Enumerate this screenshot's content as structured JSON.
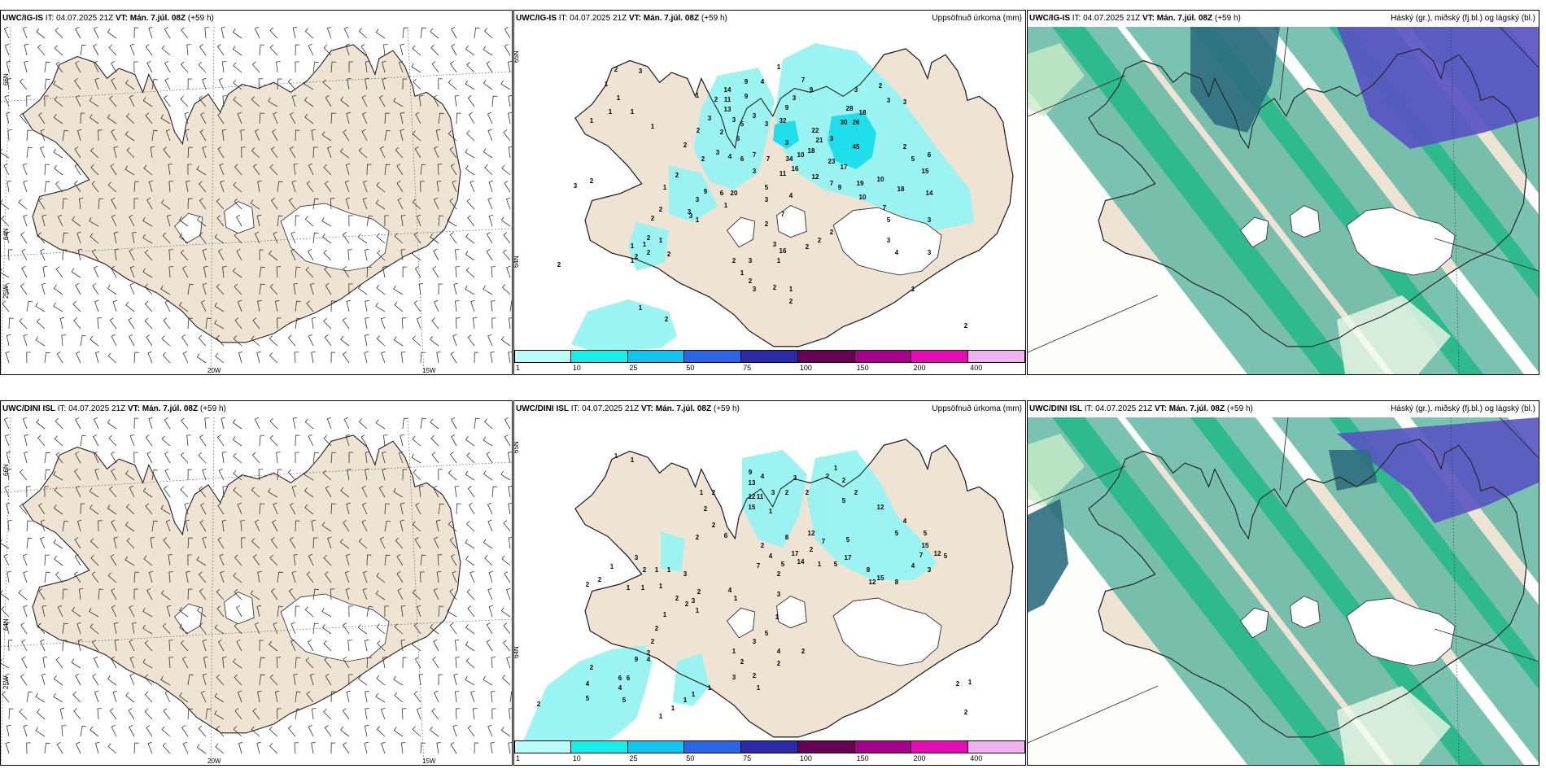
{
  "rows": [
    {
      "model": "UWC/IG-IS",
      "it_label": "IT:",
      "it_value": "04.07.2025 21Z",
      "vt_label": "VT:",
      "vt_value": "Mán. 7.júl. 08Z",
      "lead": "(+59 h)"
    },
    {
      "model": "UWC/DINI ISL",
      "it_label": "IT:",
      "it_value": "04.07.2025 21Z",
      "vt_label": "VT:",
      "vt_value": "Mán. 7.júl. 08Z",
      "lead": "(+59 h)"
    }
  ],
  "precip_title": "Uppsöfnuð úrkoma (mm)",
  "cloud_title": "Háský (gr.), miðský (fj.bl.) og lágský (bl.)",
  "axis_labels": {
    "lat_66": "66N",
    "lat_64": "64N",
    "lon_25": "25W",
    "lon_20": "20W",
    "lon_15": "15W",
    "lat_65r": "65N",
    "lat_64r": "64N"
  },
  "colorbar": {
    "labels": [
      "1",
      "10",
      "25",
      "50",
      "75",
      "100",
      "150",
      "200",
      "400"
    ],
    "colors": [
      "#b8fcfb",
      "#16eeea",
      "#0fc4ef",
      "#2c64e6",
      "#2a2aa8",
      "#680056",
      "#a8008e",
      "#e60ab4",
      "#f0b2ee"
    ]
  },
  "colors": {
    "land": "#efe3d4",
    "precip": "#96f4f2",
    "precip_heavy": "#14e0ec",
    "cloud_high": "#62b8a2",
    "cloud_mid": "#22b888",
    "cloud_low": "#5854c2",
    "cloud_low_dark": "#2f6e80"
  },
  "precip_numbers_top": [
    {
      "t": "1",
      "x": 113,
      "y": 73
    },
    {
      "t": "2",
      "x": 125,
      "y": 55
    },
    {
      "t": "3",
      "x": 155,
      "y": 57
    },
    {
      "t": "1",
      "x": 128,
      "y": 90
    },
    {
      "t": "1",
      "x": 118,
      "y": 107
    },
    {
      "t": "1",
      "x": 95,
      "y": 118
    },
    {
      "t": "1",
      "x": 145,
      "y": 107
    },
    {
      "t": "1",
      "x": 170,
      "y": 125
    },
    {
      "t": "1",
      "x": 225,
      "y": 87
    },
    {
      "t": "2",
      "x": 248,
      "y": 92
    },
    {
      "t": "14",
      "x": 262,
      "y": 80
    },
    {
      "t": "11",
      "x": 262,
      "y": 92
    },
    {
      "t": "13",
      "x": 262,
      "y": 104
    },
    {
      "t": "9",
      "x": 285,
      "y": 70
    },
    {
      "t": "9",
      "x": 285,
      "y": 88
    },
    {
      "t": "4",
      "x": 305,
      "y": 70
    },
    {
      "t": "1",
      "x": 325,
      "y": 52
    },
    {
      "t": "3",
      "x": 240,
      "y": 115
    },
    {
      "t": "3",
      "x": 270,
      "y": 117
    },
    {
      "t": "2",
      "x": 226,
      "y": 130
    },
    {
      "t": "2",
      "x": 255,
      "y": 132
    },
    {
      "t": "5",
      "x": 280,
      "y": 122
    },
    {
      "t": "3",
      "x": 295,
      "y": 112
    },
    {
      "t": "3",
      "x": 310,
      "y": 122
    },
    {
      "t": "32",
      "x": 330,
      "y": 118
    },
    {
      "t": "9",
      "x": 335,
      "y": 102
    },
    {
      "t": "7",
      "x": 355,
      "y": 68
    },
    {
      "t": "9",
      "x": 365,
      "y": 80
    },
    {
      "t": "3",
      "x": 344,
      "y": 90
    },
    {
      "t": "22",
      "x": 370,
      "y": 130
    },
    {
      "t": "21",
      "x": 375,
      "y": 142
    },
    {
      "t": "18",
      "x": 365,
      "y": 155
    },
    {
      "t": "3",
      "x": 335,
      "y": 145
    },
    {
      "t": "28",
      "x": 412,
      "y": 103
    },
    {
      "t": "18",
      "x": 428,
      "y": 108
    },
    {
      "t": "30",
      "x": 405,
      "y": 120
    },
    {
      "t": "26",
      "x": 420,
      "y": 120
    },
    {
      "t": "45",
      "x": 420,
      "y": 150
    },
    {
      "t": "3",
      "x": 390,
      "y": 140
    },
    {
      "t": "3",
      "x": 420,
      "y": 80
    },
    {
      "t": "2",
      "x": 450,
      "y": 75
    },
    {
      "t": "3",
      "x": 460,
      "y": 93
    },
    {
      "t": "3",
      "x": 480,
      "y": 95
    },
    {
      "t": "23",
      "x": 390,
      "y": 168
    },
    {
      "t": "17",
      "x": 405,
      "y": 175
    },
    {
      "t": "10",
      "x": 352,
      "y": 160
    },
    {
      "t": "34",
      "x": 338,
      "y": 165
    },
    {
      "t": "16",
      "x": 345,
      "y": 177
    },
    {
      "t": "11",
      "x": 330,
      "y": 183
    },
    {
      "t": "12",
      "x": 370,
      "y": 187
    },
    {
      "t": "7",
      "x": 312,
      "y": 165
    },
    {
      "t": "7",
      "x": 295,
      "y": 160
    },
    {
      "t": "6",
      "x": 275,
      "y": 140
    },
    {
      "t": "6",
      "x": 280,
      "y": 165
    },
    {
      "t": "3",
      "x": 295,
      "y": 180
    },
    {
      "t": "4",
      "x": 265,
      "y": 162
    },
    {
      "t": "3",
      "x": 250,
      "y": 157
    },
    {
      "t": "2",
      "x": 232,
      "y": 165
    },
    {
      "t": "2",
      "x": 210,
      "y": 148
    },
    {
      "t": "2",
      "x": 200,
      "y": 185
    },
    {
      "t": "1",
      "x": 185,
      "y": 200
    },
    {
      "t": "2",
      "x": 95,
      "y": 192
    },
    {
      "t": "3",
      "x": 75,
      "y": 198
    },
    {
      "t": "19",
      "x": 425,
      "y": 195
    },
    {
      "t": "10",
      "x": 450,
      "y": 190
    },
    {
      "t": "7",
      "x": 390,
      "y": 195
    },
    {
      "t": "9",
      "x": 400,
      "y": 200
    },
    {
      "t": "10",
      "x": 428,
      "y": 212
    },
    {
      "t": "18",
      "x": 475,
      "y": 202
    },
    {
      "t": "14",
      "x": 510,
      "y": 207
    },
    {
      "t": "2",
      "x": 480,
      "y": 150
    },
    {
      "t": "5",
      "x": 490,
      "y": 165
    },
    {
      "t": "15",
      "x": 505,
      "y": 180
    },
    {
      "t": "6",
      "x": 510,
      "y": 160
    },
    {
      "t": "7",
      "x": 455,
      "y": 225
    },
    {
      "t": "5",
      "x": 460,
      "y": 240
    },
    {
      "t": "3",
      "x": 510,
      "y": 240
    },
    {
      "t": "5",
      "x": 310,
      "y": 200
    },
    {
      "t": "3",
      "x": 310,
      "y": 215
    },
    {
      "t": "7",
      "x": 330,
      "y": 233
    },
    {
      "t": "4",
      "x": 340,
      "y": 210
    },
    {
      "t": "2",
      "x": 310,
      "y": 245
    },
    {
      "t": "20",
      "x": 270,
      "y": 207
    },
    {
      "t": "6",
      "x": 255,
      "y": 207
    },
    {
      "t": "9",
      "x": 235,
      "y": 205
    },
    {
      "t": "3",
      "x": 225,
      "y": 215
    },
    {
      "t": "1",
      "x": 225,
      "y": 240
    },
    {
      "t": "1",
      "x": 260,
      "y": 222
    },
    {
      "t": "3",
      "x": 217,
      "y": 235
    },
    {
      "t": "2",
      "x": 180,
      "y": 227
    },
    {
      "t": "3",
      "x": 215,
      "y": 230
    },
    {
      "t": "2",
      "x": 170,
      "y": 238
    },
    {
      "t": "1",
      "x": 180,
      "y": 265
    },
    {
      "t": "2",
      "x": 165,
      "y": 262
    },
    {
      "t": "1",
      "x": 160,
      "y": 270
    },
    {
      "t": "1",
      "x": 145,
      "y": 272
    },
    {
      "t": "2",
      "x": 150,
      "y": 285
    },
    {
      "t": "1",
      "x": 145,
      "y": 290
    },
    {
      "t": "2",
      "x": 165,
      "y": 280
    },
    {
      "t": "2",
      "x": 190,
      "y": 282
    },
    {
      "t": "16",
      "x": 330,
      "y": 278
    },
    {
      "t": "3",
      "x": 320,
      "y": 270
    },
    {
      "t": "1",
      "x": 325,
      "y": 290
    },
    {
      "t": "2",
      "x": 360,
      "y": 273
    },
    {
      "t": "2",
      "x": 375,
      "y": 265
    },
    {
      "t": "2",
      "x": 390,
      "y": 255
    },
    {
      "t": "2",
      "x": 270,
      "y": 290
    },
    {
      "t": "3",
      "x": 290,
      "y": 290
    },
    {
      "t": "1",
      "x": 280,
      "y": 305
    },
    {
      "t": "2",
      "x": 290,
      "y": 315
    },
    {
      "t": "3",
      "x": 295,
      "y": 325
    },
    {
      "t": "2",
      "x": 320,
      "y": 323
    },
    {
      "t": "1",
      "x": 340,
      "y": 325
    },
    {
      "t": "2",
      "x": 340,
      "y": 340
    },
    {
      "t": "3",
      "x": 460,
      "y": 265
    },
    {
      "t": "4",
      "x": 470,
      "y": 280
    },
    {
      "t": "3",
      "x": 510,
      "y": 280
    },
    {
      "t": "1",
      "x": 490,
      "y": 325
    },
    {
      "t": "2",
      "x": 55,
      "y": 295
    },
    {
      "t": "1",
      "x": 155,
      "y": 348
    },
    {
      "t": "2",
      "x": 187,
      "y": 362
    },
    {
      "t": "2",
      "x": 555,
      "y": 370
    }
  ],
  "precip_numbers_bottom": [
    {
      "t": "1",
      "x": 125,
      "y": 50
    },
    {
      "t": "1",
      "x": 145,
      "y": 55
    },
    {
      "t": "1",
      "x": 230,
      "y": 95
    },
    {
      "t": "2",
      "x": 245,
      "y": 95
    },
    {
      "t": "13",
      "x": 292,
      "y": 83
    },
    {
      "t": "11",
      "x": 302,
      "y": 100
    },
    {
      "t": "12",
      "x": 292,
      "y": 100
    },
    {
      "t": "15",
      "x": 292,
      "y": 113
    },
    {
      "t": "9",
      "x": 290,
      "y": 70
    },
    {
      "t": "4",
      "x": 305,
      "y": 75
    },
    {
      "t": "3",
      "x": 318,
      "y": 95
    },
    {
      "t": "2",
      "x": 335,
      "y": 95
    },
    {
      "t": "3",
      "x": 345,
      "y": 77
    },
    {
      "t": "2",
      "x": 360,
      "y": 95
    },
    {
      "t": "1",
      "x": 395,
      "y": 65
    },
    {
      "t": "2",
      "x": 385,
      "y": 75
    },
    {
      "t": "2",
      "x": 405,
      "y": 80
    },
    {
      "t": "2",
      "x": 420,
      "y": 95
    },
    {
      "t": "12",
      "x": 450,
      "y": 113
    },
    {
      "t": "5",
      "x": 405,
      "y": 105
    },
    {
      "t": "2",
      "x": 235,
      "y": 115
    },
    {
      "t": "1",
      "x": 315,
      "y": 118
    },
    {
      "t": "2",
      "x": 225,
      "y": 150
    },
    {
      "t": "2",
      "x": 245,
      "y": 135
    },
    {
      "t": "6",
      "x": 260,
      "y": 148
    },
    {
      "t": "8",
      "x": 335,
      "y": 150
    },
    {
      "t": "12",
      "x": 365,
      "y": 145
    },
    {
      "t": "7",
      "x": 380,
      "y": 155
    },
    {
      "t": "5",
      "x": 410,
      "y": 153
    },
    {
      "t": "4",
      "x": 480,
      "y": 130
    },
    {
      "t": "5",
      "x": 470,
      "y": 145
    },
    {
      "t": "5",
      "x": 505,
      "y": 145
    },
    {
      "t": "15",
      "x": 505,
      "y": 160
    },
    {
      "t": "12",
      "x": 520,
      "y": 170
    },
    {
      "t": "5",
      "x": 530,
      "y": 173
    },
    {
      "t": "7",
      "x": 500,
      "y": 172
    },
    {
      "t": "17",
      "x": 410,
      "y": 175
    },
    {
      "t": "17",
      "x": 345,
      "y": 170
    },
    {
      "t": "14",
      "x": 352,
      "y": 180
    },
    {
      "t": "2",
      "x": 365,
      "y": 165
    },
    {
      "t": "5",
      "x": 330,
      "y": 183
    },
    {
      "t": "2",
      "x": 325,
      "y": 195
    },
    {
      "t": "5",
      "x": 395,
      "y": 183
    },
    {
      "t": "1",
      "x": 375,
      "y": 183
    },
    {
      "t": "4",
      "x": 315,
      "y": 173
    },
    {
      "t": "2",
      "x": 305,
      "y": 160
    },
    {
      "t": "7",
      "x": 300,
      "y": 185
    },
    {
      "t": "12",
      "x": 440,
      "y": 205
    },
    {
      "t": "15",
      "x": 450,
      "y": 200
    },
    {
      "t": "8",
      "x": 435,
      "y": 190
    },
    {
      "t": "3",
      "x": 510,
      "y": 190
    },
    {
      "t": "4",
      "x": 490,
      "y": 185
    },
    {
      "t": "8",
      "x": 470,
      "y": 205
    },
    {
      "t": "1",
      "x": 120,
      "y": 186
    },
    {
      "t": "3",
      "x": 150,
      "y": 175
    },
    {
      "t": "2",
      "x": 160,
      "y": 190
    },
    {
      "t": "1",
      "x": 175,
      "y": 190
    },
    {
      "t": "1",
      "x": 190,
      "y": 190
    },
    {
      "t": "1",
      "x": 140,
      "y": 212
    },
    {
      "t": "1",
      "x": 158,
      "y": 212
    },
    {
      "t": "1",
      "x": 180,
      "y": 210
    },
    {
      "t": "2",
      "x": 90,
      "y": 208
    },
    {
      "t": "2",
      "x": 105,
      "y": 202
    },
    {
      "t": "2",
      "x": 200,
      "y": 225
    },
    {
      "t": "2",
      "x": 212,
      "y": 232
    },
    {
      "t": "3",
      "x": 220,
      "y": 228
    },
    {
      "t": "2",
      "x": 227,
      "y": 217
    },
    {
      "t": "1",
      "x": 225,
      "y": 240
    },
    {
      "t": "1",
      "x": 185,
      "y": 245
    },
    {
      "t": "4",
      "x": 265,
      "y": 215
    },
    {
      "t": "1",
      "x": 272,
      "y": 225
    },
    {
      "t": "3",
      "x": 210,
      "y": 195
    },
    {
      "t": "3",
      "x": 325,
      "y": 220
    },
    {
      "t": "1",
      "x": 323,
      "y": 248
    },
    {
      "t": "5",
      "x": 310,
      "y": 268
    },
    {
      "t": "3",
      "x": 295,
      "y": 278
    },
    {
      "t": "1",
      "x": 270,
      "y": 290
    },
    {
      "t": "2",
      "x": 175,
      "y": 262
    },
    {
      "t": "2",
      "x": 170,
      "y": 278
    },
    {
      "t": "2",
      "x": 165,
      "y": 292
    },
    {
      "t": "9",
      "x": 150,
      "y": 300
    },
    {
      "t": "4",
      "x": 165,
      "y": 300
    },
    {
      "t": "2",
      "x": 95,
      "y": 310
    },
    {
      "t": "4",
      "x": 90,
      "y": 330
    },
    {
      "t": "6",
      "x": 130,
      "y": 323
    },
    {
      "t": "6",
      "x": 140,
      "y": 323
    },
    {
      "t": "4",
      "x": 130,
      "y": 335
    },
    {
      "t": "5",
      "x": 90,
      "y": 348
    },
    {
      "t": "5",
      "x": 135,
      "y": 350
    },
    {
      "t": "2",
      "x": 30,
      "y": 355
    },
    {
      "t": "1",
      "x": 210,
      "y": 350
    },
    {
      "t": "1",
      "x": 195,
      "y": 360
    },
    {
      "t": "1",
      "x": 220,
      "y": 343
    },
    {
      "t": "1",
      "x": 240,
      "y": 335
    },
    {
      "t": "2",
      "x": 280,
      "y": 303
    },
    {
      "t": "3",
      "x": 270,
      "y": 322
    },
    {
      "t": "2",
      "x": 295,
      "y": 320
    },
    {
      "t": "1",
      "x": 300,
      "y": 335
    },
    {
      "t": "4",
      "x": 325,
      "y": 290
    },
    {
      "t": "2",
      "x": 325,
      "y": 305
    },
    {
      "t": "2",
      "x": 355,
      "y": 290
    },
    {
      "t": "1",
      "x": 180,
      "y": 370
    },
    {
      "t": "2",
      "x": 555,
      "y": 365
    },
    {
      "t": "2",
      "x": 545,
      "y": 330
    },
    {
      "t": "1",
      "x": 560,
      "y": 328
    }
  ]
}
